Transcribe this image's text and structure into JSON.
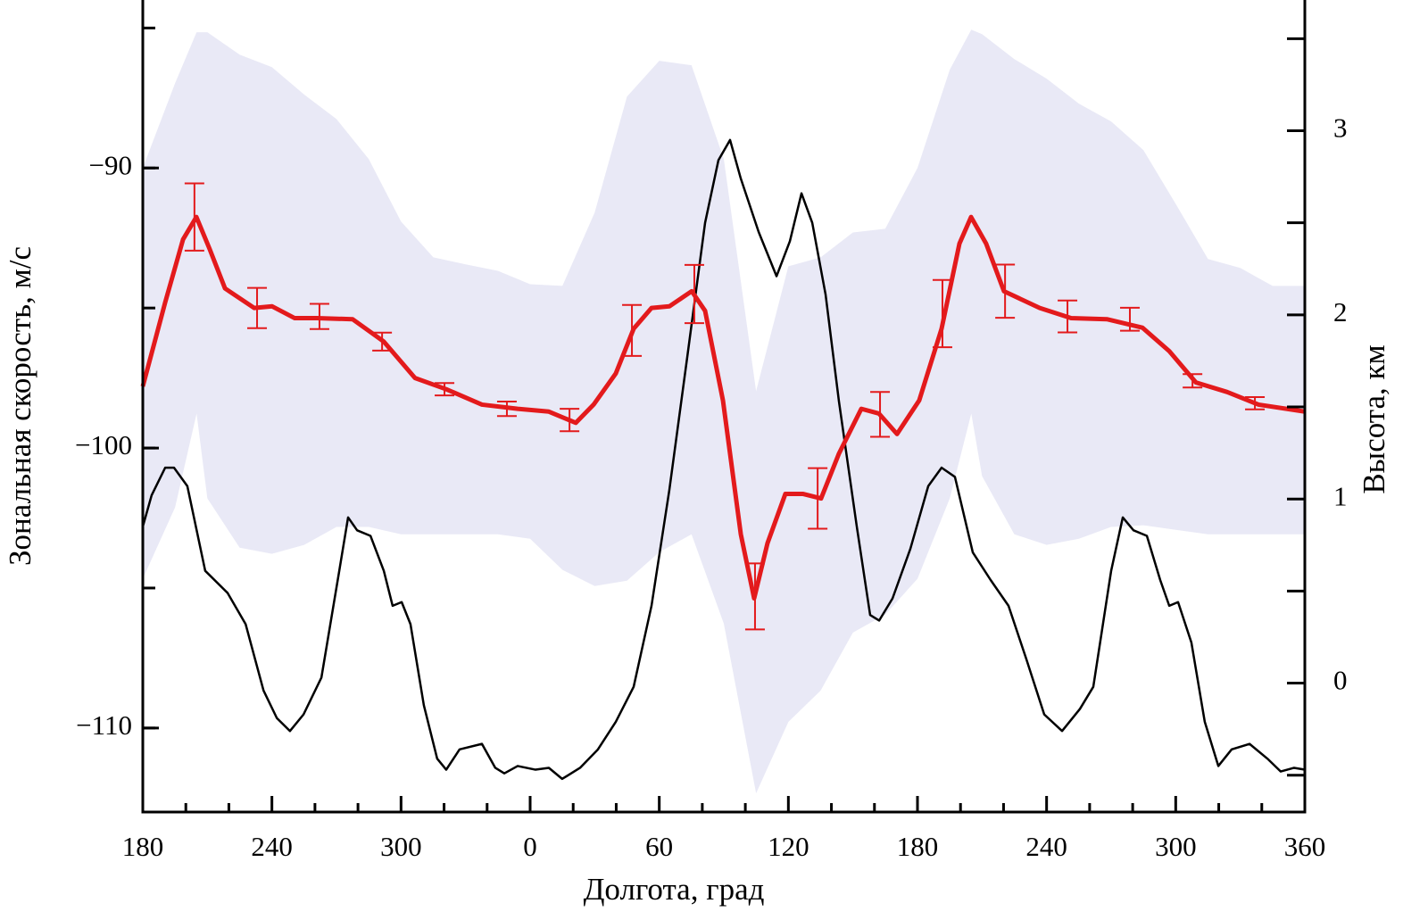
{
  "chart_data": {
    "type": "line",
    "x_label": "Долгота, град",
    "y_label": "Зональная скорость, м/с",
    "y2_label": "Высота, км",
    "xlim": [
      180,
      720
    ],
    "xticks": [
      180,
      240,
      300,
      {
        "value": 360,
        "label": "0"
      },
      {
        "value": 420,
        "label": "60"
      },
      {
        "value": 480,
        "label": "120"
      },
      {
        "value": 540,
        "label": "180"
      },
      {
        "value": 600,
        "label": "240"
      },
      {
        "value": 660,
        "label": "300"
      },
      {
        "value": 720,
        "label": "360"
      }
    ],
    "ylim": [
      -113,
      -84
    ],
    "yticks": [
      {
        "value": -110,
        "label": "−110"
      },
      {
        "value": -100,
        "label": "−100"
      },
      {
        "value": -90,
        "label": "−90"
      }
    ],
    "y2lim": [
      -0.7,
      3.71
    ],
    "y2ticks": [
      0,
      1,
      2,
      3
    ],
    "band": {
      "color": "#e9e9f6",
      "x": [
        180,
        195,
        205,
        210,
        225,
        240,
        255,
        270,
        285,
        300,
        315,
        330,
        345,
        360,
        375,
        390,
        405,
        420,
        435,
        450,
        465,
        480,
        495,
        510,
        525,
        540,
        555,
        565,
        570,
        585,
        600,
        615,
        630,
        645,
        660,
        675,
        690,
        705,
        720
      ],
      "upper": [
        -90.0,
        -86.97,
        -85.15,
        -85.15,
        -85.95,
        -86.4,
        -87.38,
        -88.25,
        -89.68,
        -91.91,
        -93.19,
        -93.44,
        -93.67,
        -94.15,
        -94.21,
        -91.59,
        -87.45,
        -86.17,
        -86.33,
        -89.68,
        -97.97,
        -93.51,
        -93.19,
        -92.3,
        -92.17,
        -90.0,
        -86.49,
        -85.06,
        -85.22,
        -86.11,
        -86.81,
        -87.7,
        -88.34,
        -89.36,
        -91.28,
        -93.25,
        -93.57,
        -94.21,
        -94.21
      ],
      "lower": [
        -104.67,
        -102.12,
        -98.77,
        -101.8,
        -103.56,
        -103.78,
        -103.46,
        -102.82,
        -102.82,
        -103.08,
        -103.08,
        -103.08,
        -103.08,
        -103.24,
        -104.35,
        -104.93,
        -104.74,
        -103.72,
        -103.08,
        -106.27,
        -112.33,
        -109.78,
        -108.66,
        -106.59,
        -105.95,
        -104.67,
        -101.8,
        -98.77,
        -101.0,
        -103.08,
        -103.46,
        -103.24,
        -102.82,
        -102.76,
        -102.92,
        -103.08,
        -103.08,
        -103.08,
        -103.08
      ]
    },
    "series": [
      {
        "color": "#000000",
        "axis": "y2",
        "x": [
          180.0,
          184.1,
          190.4,
          194.5,
          200.7,
          209.0,
          219.4,
          227.8,
          236.1,
          242.3,
          248.4,
          254.7,
          263.0,
          271.3,
          275.4,
          279.6,
          285.8,
          292.0,
          296.1,
          300.3,
          304.4,
          310.6,
          316.8,
          321.0,
          327.2,
          337.6,
          343.8,
          348.0,
          354.2,
          362.5,
          368.7,
          374.9,
          383.2,
          391.5,
          399.8,
          408.1,
          416.4,
          424.7,
          433.0,
          441.3,
          447.5,
          452.9,
          457.9,
          466.2,
          474.5,
          480.7,
          486.1,
          491.1,
          497.3,
          503.5,
          511.8,
          518.0,
          522.2,
          528.4,
          536.7,
          545.0,
          551.2,
          557.4,
          565.7,
          574.0,
          582.3,
          590.6,
          598.9,
          607.2,
          615.5,
          621.7,
          630.0,
          635.4,
          640.4,
          646.6,
          652.8,
          657.0,
          661.1,
          667.3,
          673.5,
          679.8,
          686.0,
          694.3,
          702.6,
          708.8,
          715.0,
          720.0
        ],
        "values": [
          0.85,
          1.02,
          1.17,
          1.17,
          1.07,
          0.61,
          0.49,
          0.32,
          -0.04,
          -0.19,
          -0.26,
          -0.17,
          0.03,
          0.61,
          0.9,
          0.83,
          0.8,
          0.61,
          0.42,
          0.44,
          0.32,
          -0.12,
          -0.41,
          -0.47,
          -0.36,
          -0.33,
          -0.46,
          -0.49,
          -0.45,
          -0.47,
          -0.46,
          -0.52,
          -0.46,
          -0.36,
          -0.21,
          -0.02,
          0.42,
          1.05,
          1.77,
          2.5,
          2.84,
          2.95,
          2.74,
          2.45,
          2.21,
          2.4,
          2.66,
          2.5,
          2.11,
          1.53,
          0.85,
          0.37,
          0.34,
          0.46,
          0.73,
          1.07,
          1.17,
          1.12,
          0.71,
          0.56,
          0.42,
          0.13,
          -0.17,
          -0.26,
          -0.14,
          -0.02,
          0.61,
          0.9,
          0.83,
          0.8,
          0.56,
          0.42,
          0.44,
          0.22,
          -0.21,
          -0.45,
          -0.36,
          -0.33,
          -0.41,
          -0.48,
          -0.46,
          -0.47
        ]
      },
      {
        "color": "#e31a1c",
        "x": [
          180,
          190.4,
          198.7,
          204.9,
          211.1,
          218.2,
          231.8,
          240.1,
          250.5,
          260.9,
          277.5,
          292,
          306.5,
          321,
          337.6,
          354.2,
          368.7,
          381.2,
          389.5,
          399.8,
          408.1,
          416.4,
          424.7,
          435.1,
          441.3,
          449.6,
          457.9,
          464.1,
          470.3,
          478.6,
          486.9,
          495.2,
          503.5,
          513.9,
          522.1,
          530.5,
          540.8,
          551.2,
          559.5,
          564.9,
          571.9,
          580.2,
          596.8,
          611.4,
          628,
          644.5,
          657,
          669.4,
          683.9,
          698.5,
          720
        ],
        "values": [
          -97.8,
          -94.8,
          -92.55,
          -91.75,
          -92.9,
          -94.3,
          -95.0,
          -94.94,
          -95.36,
          -95.36,
          -95.4,
          -96.2,
          -97.5,
          -97.9,
          -98.45,
          -98.6,
          -98.7,
          -99.1,
          -98.45,
          -97.34,
          -95.74,
          -95.0,
          -94.94,
          -94.4,
          -95.1,
          -98.3,
          -103.08,
          -105.37,
          -103.4,
          -101.64,
          -101.64,
          -101.8,
          -100.2,
          -98.6,
          -98.77,
          -99.5,
          -98.3,
          -95.74,
          -92.7,
          -91.75,
          -92.7,
          -94.4,
          -95.0,
          -95.36,
          -95.4,
          -95.7,
          -96.54,
          -97.66,
          -98.0,
          -98.45,
          -98.7
        ]
      }
    ],
    "errorbars": {
      "color": "#e31a1c",
      "x": [
        204,
        233.1,
        262.1,
        291.2,
        320.2,
        349.2,
        378.3,
        407.3,
        436.3,
        464.5,
        493.6,
        522.6,
        551.6,
        580.7,
        609.7,
        638.7,
        667.8,
        696.8
      ],
      "values": [
        -91.75,
        -95.0,
        -95.3,
        -96.2,
        -97.9,
        -98.6,
        -99.0,
        -95.8,
        -94.5,
        -105.3,
        -101.8,
        -98.8,
        -95.2,
        -94.4,
        -95.3,
        -95.4,
        -97.6,
        -98.4
      ],
      "errors": [
        1.2,
        0.72,
        0.45,
        0.32,
        0.22,
        0.26,
        0.4,
        0.91,
        1.04,
        1.18,
        1.08,
        0.8,
        1.2,
        0.95,
        0.57,
        0.41,
        0.24,
        0.22
      ]
    }
  }
}
